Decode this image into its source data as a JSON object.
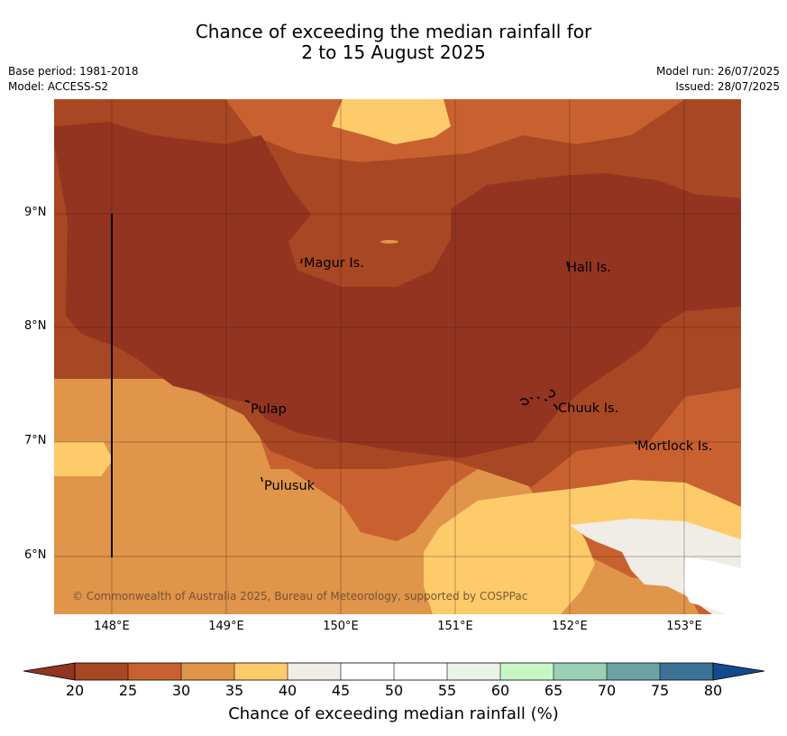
{
  "header": {
    "title_line1": "Chance of exceeding the median rainfall for",
    "title_line2": "2 to 15 August 2025",
    "base_period": "Base period: 1981-2018",
    "model": "Model: ACCESS-S2",
    "model_run": "Model run: 26/07/2025",
    "issued": "Issued: 28/07/2025"
  },
  "map": {
    "lat_labels": [
      "9°N",
      "8°N",
      "7°N",
      "6°N"
    ],
    "lon_labels": [
      "148°E",
      "149°E",
      "150°E",
      "151°E",
      "152°E",
      "153°E"
    ],
    "places": [
      "Magur Is.",
      "Hall Is.",
      "Pulap",
      "Chuuk Is.",
      "Mortlock Is.",
      "Pulusuk"
    ],
    "copyright": "© Commonwealth of Australia 2025, Bureau of Meteorology, supported by COSPPac"
  },
  "colorbar": {
    "ticks": [
      "20",
      "25",
      "30",
      "35",
      "40",
      "45",
      "50",
      "55",
      "60",
      "65",
      "70",
      "75",
      "80"
    ],
    "colors": [
      "#a84723",
      "#c8612f",
      "#e0954a",
      "#fecb6b",
      "#f0ece6",
      "#ffffff",
      "#ffffff",
      "#eaf4e6",
      "#c8f7c6",
      "#9ad0b6",
      "#6ba3a5",
      "#3c7394"
    ],
    "under_color": "#923420",
    "over_color": "#114a8e",
    "title": "Chance of exceeding median rainfall (%)"
  }
}
